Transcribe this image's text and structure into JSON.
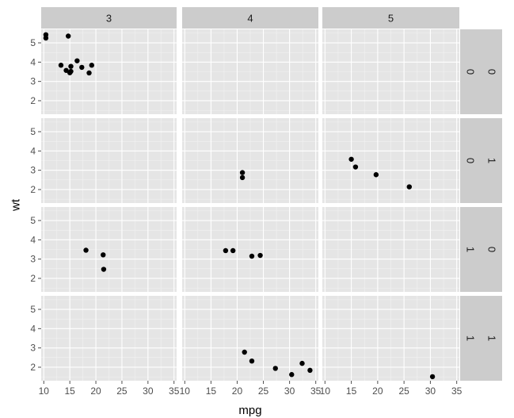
{
  "chart_data": {
    "type": "scatter",
    "facet": {
      "cols": {
        "labels": [
          "3",
          "4",
          "5"
        ]
      },
      "rows": {
        "labels": [
          [
            "0",
            "0"
          ],
          [
            "0",
            "1"
          ],
          [
            "1",
            "0"
          ],
          [
            "1",
            "1"
          ]
        ]
      }
    },
    "xlabel": "mpg",
    "ylabel": "wt",
    "xlim": [
      9.5,
      35.5
    ],
    "ylim": [
      1.3,
      5.7
    ],
    "x_ticks": [
      10,
      15,
      20,
      25,
      30,
      35
    ],
    "y_ticks": [
      2,
      3,
      4,
      5
    ],
    "grid": true,
    "panels": [
      {
        "row": 0,
        "col": 0,
        "points": [
          {
            "x": 10.4,
            "y": 5.42
          },
          {
            "x": 10.4,
            "y": 5.25
          },
          {
            "x": 14.7,
            "y": 5.35
          },
          {
            "x": 13.3,
            "y": 3.84
          },
          {
            "x": 14.3,
            "y": 3.57
          },
          {
            "x": 15.0,
            "y": 3.45
          },
          {
            "x": 15.2,
            "y": 3.52
          },
          {
            "x": 15.2,
            "y": 3.78
          },
          {
            "x": 16.4,
            "y": 4.07
          },
          {
            "x": 17.3,
            "y": 3.73
          },
          {
            "x": 18.7,
            "y": 3.44
          },
          {
            "x": 19.2,
            "y": 3.84
          }
        ]
      },
      {
        "row": 0,
        "col": 1,
        "points": []
      },
      {
        "row": 0,
        "col": 2,
        "points": []
      },
      {
        "row": 1,
        "col": 0,
        "points": []
      },
      {
        "row": 1,
        "col": 1,
        "points": [
          {
            "x": 21.0,
            "y": 2.88
          },
          {
            "x": 21.0,
            "y": 2.62
          }
        ]
      },
      {
        "row": 1,
        "col": 2,
        "points": [
          {
            "x": 15.0,
            "y": 3.57
          },
          {
            "x": 15.8,
            "y": 3.17
          },
          {
            "x": 19.7,
            "y": 2.77
          },
          {
            "x": 26.0,
            "y": 2.14
          }
        ]
      },
      {
        "row": 2,
        "col": 0,
        "points": [
          {
            "x": 18.1,
            "y": 3.46
          },
          {
            "x": 21.4,
            "y": 3.22
          },
          {
            "x": 21.5,
            "y": 2.47
          }
        ]
      },
      {
        "row": 2,
        "col": 1,
        "points": [
          {
            "x": 17.8,
            "y": 3.44
          },
          {
            "x": 19.2,
            "y": 3.44
          },
          {
            "x": 22.8,
            "y": 3.15
          },
          {
            "x": 24.4,
            "y": 3.19
          }
        ]
      },
      {
        "row": 2,
        "col": 2,
        "points": []
      },
      {
        "row": 3,
        "col": 0,
        "points": []
      },
      {
        "row": 3,
        "col": 1,
        "points": [
          {
            "x": 21.4,
            "y": 2.78
          },
          {
            "x": 22.8,
            "y": 2.32
          },
          {
            "x": 27.3,
            "y": 1.94
          },
          {
            "x": 30.4,
            "y": 1.62
          },
          {
            "x": 32.4,
            "y": 2.2
          },
          {
            "x": 33.9,
            "y": 1.84
          }
        ]
      },
      {
        "row": 3,
        "col": 2,
        "points": [
          {
            "x": 30.4,
            "y": 1.51
          }
        ]
      }
    ]
  }
}
